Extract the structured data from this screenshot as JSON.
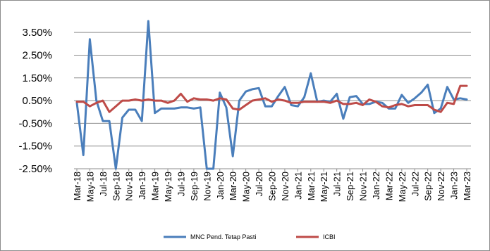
{
  "chart_data": {
    "type": "line",
    "title": "",
    "xlabel": "",
    "ylabel": "",
    "ylim": [
      -2.5,
      4.0
    ],
    "yticks": [
      "3.50%",
      "2.50%",
      "1.50%",
      "0.50%",
      "-0.50%",
      "-1.50%",
      "-2.50%"
    ],
    "ytick_values": [
      3.5,
      2.5,
      1.5,
      0.5,
      -0.5,
      -1.5,
      -2.5
    ],
    "grid": "horizontal",
    "legend_position": "bottom",
    "x": [
      "Mar-18",
      "Apr-18",
      "May-18",
      "Jun-18",
      "Jul-18",
      "Aug-18",
      "Sep-18",
      "Oct-18",
      "Nov-18",
      "Dec-18",
      "Jan-19",
      "Feb-19",
      "Mar-19",
      "Apr-19",
      "May-19",
      "Jun-19",
      "Jul-19",
      "Aug-19",
      "Sep-19",
      "Oct-19",
      "Nov-19",
      "Dec-19",
      "Jan-20",
      "Feb-20",
      "Mar-20",
      "Apr-20",
      "May-20",
      "Jun-20",
      "Jul-20",
      "Aug-20",
      "Sep-20",
      "Oct-20",
      "Nov-20",
      "Dec-20",
      "Jan-21",
      "Feb-21",
      "Mar-21",
      "Apr-21",
      "May-21",
      "Jun-21",
      "Jul-21",
      "Aug-21",
      "Sep-21",
      "Oct-21",
      "Nov-21",
      "Dec-21",
      "Jan-22",
      "Feb-22",
      "Mar-22",
      "Apr-22",
      "May-22",
      "Jun-22",
      "Jul-22",
      "Aug-22",
      "Sep-22",
      "Oct-22",
      "Nov-22",
      "Dec-22",
      "Jan-23",
      "Feb-23",
      "Mar-23"
    ],
    "xtick_labels": [
      "Mar-18",
      "May-18",
      "Jul-18",
      "Sep-18",
      "Nov-18",
      "Jan-19",
      "Mar-19",
      "May-19",
      "Jul-19",
      "Sep-19",
      "Nov-19",
      "Jan-20",
      "Mar-20",
      "May-20",
      "Jul-20",
      "Sep-20",
      "Nov-20",
      "Jan-21",
      "Mar-21",
      "May-21",
      "Jul-21",
      "Sep-21",
      "Nov-21",
      "Jan-22",
      "Mar-22",
      "May-22",
      "Jul-22",
      "Sep-22",
      "Nov-22",
      "Jan-23",
      "Mar-23"
    ],
    "series": [
      {
        "name": "MNC Pend. Tetap Pasti",
        "color": "#4a7ebb",
        "values": [
          0.4,
          -1.9,
          3.2,
          0.5,
          -0.4,
          -0.4,
          -2.5,
          -0.25,
          0.1,
          0.1,
          -0.4,
          4.0,
          -0.05,
          0.15,
          0.15,
          0.15,
          0.2,
          0.2,
          0.15,
          0.2,
          -2.5,
          -2.5,
          0.85,
          0.2,
          -1.95,
          0.5,
          0.9,
          1.0,
          1.05,
          0.25,
          0.25,
          0.7,
          1.1,
          0.3,
          0.25,
          0.65,
          1.7,
          0.45,
          0.5,
          0.45,
          0.8,
          -0.3,
          0.65,
          0.7,
          0.35,
          0.35,
          0.45,
          0.4,
          0.15,
          0.15,
          0.75,
          0.4,
          0.6,
          0.85,
          1.2,
          -0.05,
          0.15,
          1.1,
          0.55,
          0.6,
          0.55
        ]
      },
      {
        "name": "ICBI",
        "color": "#be4b48",
        "values": [
          0.45,
          0.45,
          0.25,
          0.4,
          0.5,
          0.0,
          0.25,
          0.5,
          0.5,
          0.55,
          0.5,
          0.55,
          0.5,
          0.5,
          0.4,
          0.5,
          0.8,
          0.45,
          0.6,
          0.55,
          0.55,
          0.5,
          0.6,
          0.55,
          0.15,
          0.1,
          0.3,
          0.5,
          0.55,
          0.6,
          0.45,
          0.55,
          0.5,
          0.4,
          0.4,
          0.45,
          0.45,
          0.45,
          0.45,
          0.4,
          0.5,
          0.35,
          0.35,
          0.4,
          0.3,
          0.55,
          0.45,
          0.25,
          0.2,
          0.3,
          0.35,
          0.25,
          0.3,
          0.3,
          0.3,
          0.1,
          0.0,
          0.4,
          0.35,
          1.15,
          1.15
        ]
      }
    ]
  }
}
